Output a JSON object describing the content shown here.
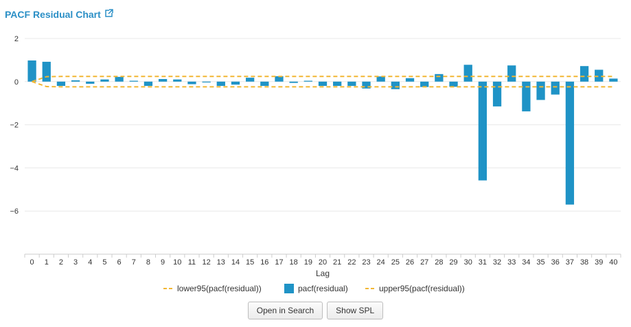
{
  "header": {
    "title": "PACF Residual Chart",
    "link_icon": "external-link-icon"
  },
  "buttons": {
    "open_in_search": "Open in Search",
    "show_spl": "Show SPL"
  },
  "colors": {
    "title": "#2b8fc6",
    "bar": "#1f93c6",
    "band": "#f2b632",
    "grid": "#e8e8e8",
    "axis": "#cccccc"
  },
  "chart_data": {
    "type": "bar",
    "xlabel": "Lag",
    "ylabel": "",
    "ylim": [
      -8,
      2
    ],
    "yticks": [
      2,
      0,
      -2,
      -4,
      -6
    ],
    "grid": true,
    "legend_position": "bottom",
    "categories": [
      "0",
      "1",
      "2",
      "3",
      "4",
      "5",
      "6",
      "7",
      "8",
      "9",
      "10",
      "11",
      "12",
      "13",
      "14",
      "15",
      "16",
      "17",
      "18",
      "19",
      "20",
      "21",
      "22",
      "23",
      "24",
      "25",
      "26",
      "27",
      "28",
      "29",
      "30",
      "31",
      "32",
      "33",
      "34",
      "35",
      "36",
      "37",
      "38",
      "39",
      "40"
    ],
    "series": [
      {
        "name": "lower95(pacf(residual))",
        "kind": "line",
        "style": "dashed",
        "values": [
          0,
          -0.23,
          -0.24,
          -0.24,
          -0.24,
          -0.24,
          -0.24,
          -0.24,
          -0.24,
          -0.24,
          -0.24,
          -0.24,
          -0.24,
          -0.24,
          -0.24,
          -0.24,
          -0.24,
          -0.24,
          -0.24,
          -0.24,
          -0.24,
          -0.24,
          -0.24,
          -0.24,
          -0.24,
          -0.24,
          -0.24,
          -0.24,
          -0.24,
          -0.24,
          -0.24,
          -0.24,
          -0.24,
          -0.24,
          -0.24,
          -0.24,
          -0.24,
          -0.24,
          -0.24,
          -0.24,
          -0.24
        ]
      },
      {
        "name": "pacf(residual)",
        "kind": "bar",
        "values": [
          0.98,
          0.92,
          -0.2,
          0.06,
          -0.1,
          0.1,
          0.22,
          0.04,
          -0.2,
          0.12,
          0.1,
          -0.12,
          -0.04,
          -0.2,
          -0.14,
          0.18,
          -0.2,
          0.25,
          -0.06,
          0.04,
          -0.2,
          -0.2,
          -0.2,
          -0.32,
          0.24,
          -0.35,
          0.16,
          -0.25,
          0.35,
          -0.24,
          0.78,
          -4.58,
          -1.15,
          0.75,
          -1.38,
          -0.85,
          -0.6,
          -5.7,
          0.72,
          0.55,
          0.14
        ]
      },
      {
        "name": "upper95(pacf(residual))",
        "kind": "line",
        "style": "dashed",
        "values": [
          0,
          0.23,
          0.24,
          0.24,
          0.24,
          0.24,
          0.24,
          0.24,
          0.24,
          0.24,
          0.24,
          0.24,
          0.24,
          0.24,
          0.24,
          0.24,
          0.24,
          0.24,
          0.24,
          0.24,
          0.24,
          0.24,
          0.24,
          0.24,
          0.24,
          0.24,
          0.24,
          0.24,
          0.24,
          0.24,
          0.24,
          0.24,
          0.24,
          0.24,
          0.24,
          0.24,
          0.24,
          0.24,
          0.24,
          0.24,
          0.24
        ]
      }
    ]
  }
}
